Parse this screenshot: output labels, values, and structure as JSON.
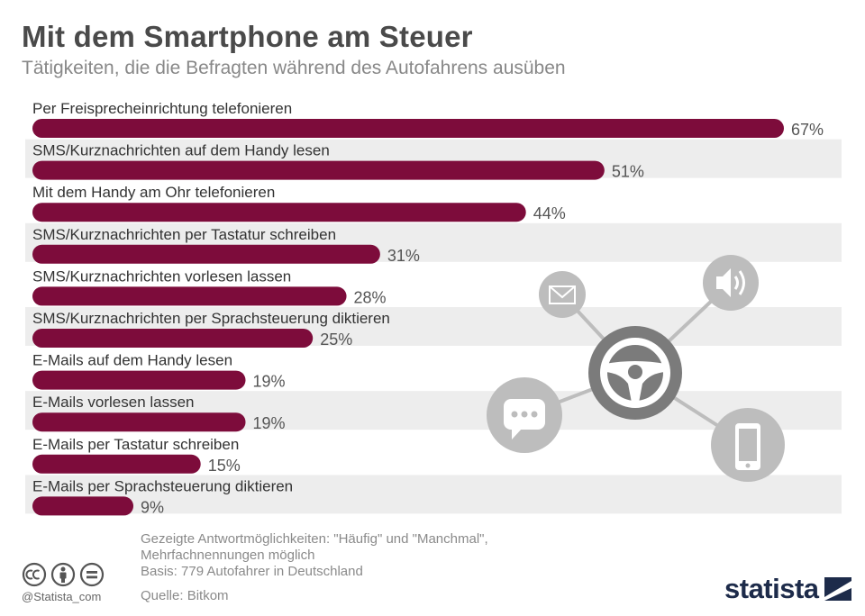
{
  "title": "Mit dem Smartphone am Steuer",
  "subtitle": "Tätigkeiten, die die Befragten während des Autofahrens ausüben",
  "chart_data": {
    "type": "bar",
    "orientation": "horizontal",
    "categories": [
      "Per Freisprecheinrichtung telefonieren",
      "SMS/Kurznachrichten auf dem Handy lesen",
      "Mit dem Handy am Ohr telefonieren",
      "SMS/Kurznachrichten per Tastatur schreiben",
      "SMS/Kurznachrichten vorlesen lassen",
      "SMS/Kurznachrichten per Sprachsteuerung diktieren",
      "E-Mails auf dem Handy lesen",
      "E-Mails vorlesen lassen",
      "E-Mails per Tastatur schreiben",
      "E-Mails per Sprachsteuerung diktieren"
    ],
    "values": [
      67,
      51,
      44,
      31,
      28,
      25,
      19,
      19,
      15,
      9
    ],
    "value_labels": [
      "67%",
      "51%",
      "44%",
      "31%",
      "28%",
      "25%",
      "19%",
      "19%",
      "15%",
      "9%"
    ],
    "unit": "%",
    "xlim": [
      0,
      67
    ],
    "grid": false,
    "legend": "none",
    "colors": {
      "bar": "#7d0c3b",
      "row_band": "#ededed",
      "label": "#333333",
      "value": "#555555",
      "illustration": "#bdbdbd",
      "wheel": "#7b7b7b"
    }
  },
  "notes": {
    "line1": "Gezeigte Antwortmöglichkeiten: \"Häufig\" und \"Manchmal\",",
    "line2": "Mehrfachnennungen möglich",
    "line3": "Basis: 779 Autofahrer in Deutschland"
  },
  "source": "Quelle: Bitkom",
  "handle": "@Statista_com",
  "brand": "statista",
  "license_icons": [
    "cc-icon",
    "by-icon",
    "nd-icon"
  ]
}
